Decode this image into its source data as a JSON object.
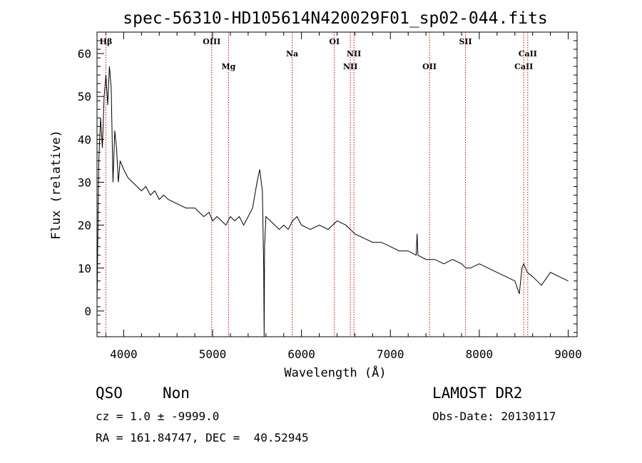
{
  "chart_data": {
    "type": "line",
    "title": "spec-56310-HD105614N420029F01_sp02-044.fits",
    "xlabel": "Wavelength (Å)",
    "ylabel": "Flux (relative)",
    "xlim": [
      3700,
      9100
    ],
    "ylim": [
      -6,
      65
    ],
    "xticks": [
      4000,
      5000,
      6000,
      7000,
      8000,
      9000
    ],
    "yticks": [
      0,
      10,
      20,
      30,
      40,
      50,
      60
    ],
    "line_color": "#000000",
    "marker_color": "#cc0000",
    "spectral_lines": [
      {
        "label": "Hβ",
        "wavelength": 3800,
        "row": "upper"
      },
      {
        "label": "OIII",
        "wavelength": 4990,
        "row": "upper"
      },
      {
        "label": "Mg",
        "wavelength": 5180,
        "row": "lower"
      },
      {
        "label": "Na",
        "wavelength": 5895,
        "row": "middle"
      },
      {
        "label": "OI",
        "wavelength": 6370,
        "row": "upper"
      },
      {
        "label": "NII",
        "wavelength": 6550,
        "row": "lower"
      },
      {
        "label": "NII",
        "wavelength": 6590,
        "row": "middle"
      },
      {
        "label": "OII",
        "wavelength": 7440,
        "row": "lower"
      },
      {
        "label": "SII",
        "wavelength": 7845,
        "row": "upper"
      },
      {
        "label": "CaII",
        "wavelength": 8500,
        "row": "lower"
      },
      {
        "label": "CaII",
        "wavelength": 8545,
        "row": "middle"
      }
    ],
    "series": [
      {
        "x": [
          3700,
          3720,
          3740,
          3760,
          3780,
          3800,
          3820,
          3840,
          3860,
          3880,
          3900,
          3920,
          3940,
          3960,
          3980,
          4000,
          4050,
          4100,
          4150,
          4200,
          4250,
          4300,
          4350,
          4400,
          4450,
          4500,
          4600,
          4700,
          4800,
          4900,
          4960,
          5000,
          5050,
          5100,
          5150,
          5200,
          5250,
          5300,
          5350,
          5400,
          5450,
          5500,
          5530,
          5560,
          5575,
          5580,
          5585,
          5600,
          5650,
          5700,
          5750,
          5800,
          5850,
          5900,
          5950,
          6000,
          6100,
          6200,
          6300,
          6400,
          6500,
          6550,
          6600,
          6700,
          6800,
          6900,
          7000,
          7100,
          7200,
          7290,
          7300,
          7310,
          7400,
          7500,
          7600,
          7700,
          7800,
          7850,
          7900,
          8000,
          8100,
          8200,
          8300,
          8400,
          8450,
          8480,
          8500,
          8540,
          8600,
          8650,
          8700,
          8800,
          8900,
          9000
        ],
        "y": [
          2,
          35,
          45,
          38,
          50,
          55,
          48,
          57,
          52,
          30,
          42,
          38,
          30,
          35,
          34,
          33,
          31,
          30,
          29,
          28,
          29,
          27,
          28,
          26,
          27,
          26,
          25,
          24,
          24,
          22,
          23,
          21,
          22,
          21,
          20,
          22,
          21,
          22,
          20,
          22,
          24,
          30,
          33,
          28,
          10,
          -6,
          15,
          22,
          21,
          20,
          19,
          20,
          19,
          21,
          22,
          20,
          19,
          20,
          19,
          21,
          20,
          19,
          18,
          17,
          16,
          16,
          15,
          14,
          14,
          13,
          18,
          13,
          12,
          12,
          11,
          12,
          11,
          10,
          10,
          11,
          10,
          9,
          8,
          7,
          4,
          10,
          11,
          9,
          8,
          7,
          6,
          9,
          8,
          7
        ]
      }
    ]
  },
  "info": {
    "class_label": "QSO",
    "subclass_label": "Non",
    "survey": "LAMOST DR2",
    "cz": "cz = 1.0 ± -9999.0",
    "obs_date": "Obs-Date: 20130117",
    "radec": "RA = 161.84747, DEC =  40.52945"
  }
}
